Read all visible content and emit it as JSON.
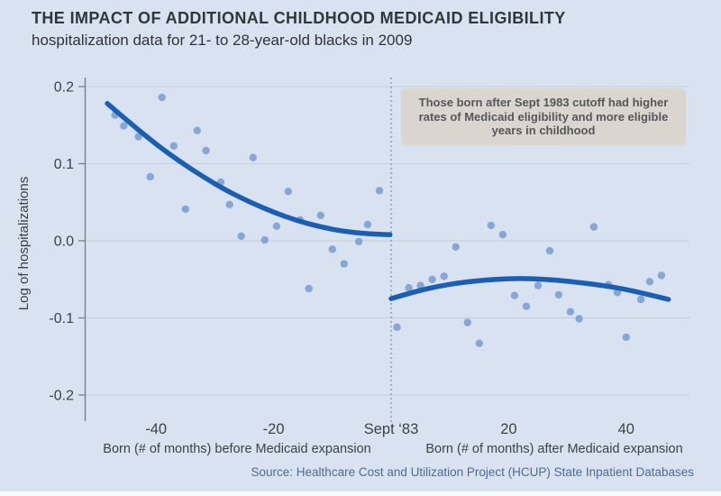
{
  "header": {
    "title": "THE IMPACT OF ADDITIONAL CHILDHOOD MEDICAID ELIGIBILITY",
    "subtitle": "hospitalization data for 21- to 28-year-old blacks in 2009"
  },
  "annotation": {
    "lines": [
      "Those born after Sept 1983 cutoff had higher",
      "rates of Medicaid eligibility and more eligible",
      "years in childhood"
    ]
  },
  "chart_data": {
    "type": "scatter",
    "ylabel": "Log of hospitalizations",
    "xlabel_left": "Born (# of months) before Medicaid expansion",
    "xlabel_right": "Born (# of months) after Medicaid expansion",
    "xlim": [
      -52,
      51
    ],
    "ylim": [
      -0.21,
      0.21
    ],
    "grid": true,
    "legend": "none",
    "y_ticks": [
      {
        "v": 0.2,
        "label": "0.2"
      },
      {
        "v": 0.1,
        "label": "0.1"
      },
      {
        "v": 0.0,
        "label": "0.0"
      },
      {
        "v": -0.1,
        "label": "-0.1"
      },
      {
        "v": -0.2,
        "label": "-0.2"
      }
    ],
    "x_ticks": [
      {
        "m": -40,
        "label": "-40"
      },
      {
        "m": -20,
        "label": "-20"
      },
      {
        "m": 0,
        "label": "Sept ‘83"
      },
      {
        "m": 20,
        "label": "20"
      },
      {
        "m": 40,
        "label": "40"
      }
    ],
    "cutoff": {
      "month": 0,
      "label": "Sept ‘83"
    },
    "series": [
      {
        "name": "Hospitalizations before cutoff (binned scatter)",
        "kind": "scatter",
        "points": [
          [
            -47,
            0.163
          ],
          [
            -45.5,
            0.149
          ],
          [
            -43,
            0.135
          ],
          [
            -41,
            0.083
          ],
          [
            -39,
            0.186
          ],
          [
            -37,
            0.123
          ],
          [
            -35,
            0.041
          ],
          [
            -33,
            0.143
          ],
          [
            -31.5,
            0.117
          ],
          [
            -29,
            0.076
          ],
          [
            -27.5,
            0.047
          ],
          [
            -25.5,
            0.006
          ],
          [
            -23.5,
            0.108
          ],
          [
            -21.5,
            0.001
          ],
          [
            -19.5,
            0.019
          ],
          [
            -17.5,
            0.064
          ],
          [
            -15.5,
            0.027
          ],
          [
            -14,
            -0.062
          ],
          [
            -12,
            0.033
          ],
          [
            -10,
            -0.011
          ],
          [
            -8,
            -0.03
          ],
          [
            -5.5,
            -0.001
          ],
          [
            -4,
            0.021
          ],
          [
            -2,
            0.065
          ]
        ]
      },
      {
        "name": "Hospitalizations after cutoff (binned scatter)",
        "kind": "scatter",
        "points": [
          [
            1,
            -0.112
          ],
          [
            3,
            -0.061
          ],
          [
            5,
            -0.058
          ],
          [
            7,
            -0.05
          ],
          [
            9,
            -0.046
          ],
          [
            11,
            -0.008
          ],
          [
            13,
            -0.106
          ],
          [
            15,
            -0.133
          ],
          [
            17,
            0.02
          ],
          [
            19,
            0.008
          ],
          [
            21,
            -0.071
          ],
          [
            23,
            -0.085
          ],
          [
            25,
            -0.058
          ],
          [
            27,
            -0.013
          ],
          [
            28.5,
            -0.07
          ],
          [
            30.5,
            -0.092
          ],
          [
            32,
            -0.101
          ],
          [
            34.5,
            0.018
          ],
          [
            37,
            -0.057
          ],
          [
            38.5,
            -0.067
          ],
          [
            40,
            -0.125
          ],
          [
            42.5,
            -0.076
          ],
          [
            44,
            -0.053
          ],
          [
            46,
            -0.045
          ]
        ]
      },
      {
        "name": "Fitted trend before cutoff",
        "kind": "fit",
        "points": [
          [
            -48.3,
            0.178
          ],
          [
            -44,
            0.15
          ],
          [
            -40,
            0.125
          ],
          [
            -36,
            0.103
          ],
          [
            -32,
            0.083
          ],
          [
            -28,
            0.065
          ],
          [
            -24,
            0.05
          ],
          [
            -20,
            0.037
          ],
          [
            -16,
            0.026
          ],
          [
            -12,
            0.018
          ],
          [
            -8,
            0.012
          ],
          [
            -4,
            0.009
          ],
          [
            -0.2,
            0.008
          ]
        ]
      },
      {
        "name": "Fitted trend after cutoff",
        "kind": "fit",
        "points": [
          [
            0,
            -0.075
          ],
          [
            4,
            -0.066
          ],
          [
            8,
            -0.059
          ],
          [
            12,
            -0.054
          ],
          [
            16,
            -0.051
          ],
          [
            20,
            -0.049
          ],
          [
            24,
            -0.049
          ],
          [
            28,
            -0.051
          ],
          [
            32,
            -0.054
          ],
          [
            36,
            -0.058
          ],
          [
            40,
            -0.063
          ],
          [
            44,
            -0.07
          ],
          [
            47.2,
            -0.076
          ]
        ]
      }
    ],
    "colors": {
      "background": "#d9e2f0",
      "grid": "#c4cddc",
      "axis": "#77828f",
      "cutoff_line": "#7f8a96",
      "tick_text": "#3e4246",
      "dot": "#7ca1d1",
      "curve": "#1a5fb4",
      "annotation_bg": "#dbd5d0"
    }
  },
  "footer": {
    "source": "Source: Healthcare Cost and Utilization Project (HCUP) State Inpatient Databases"
  }
}
